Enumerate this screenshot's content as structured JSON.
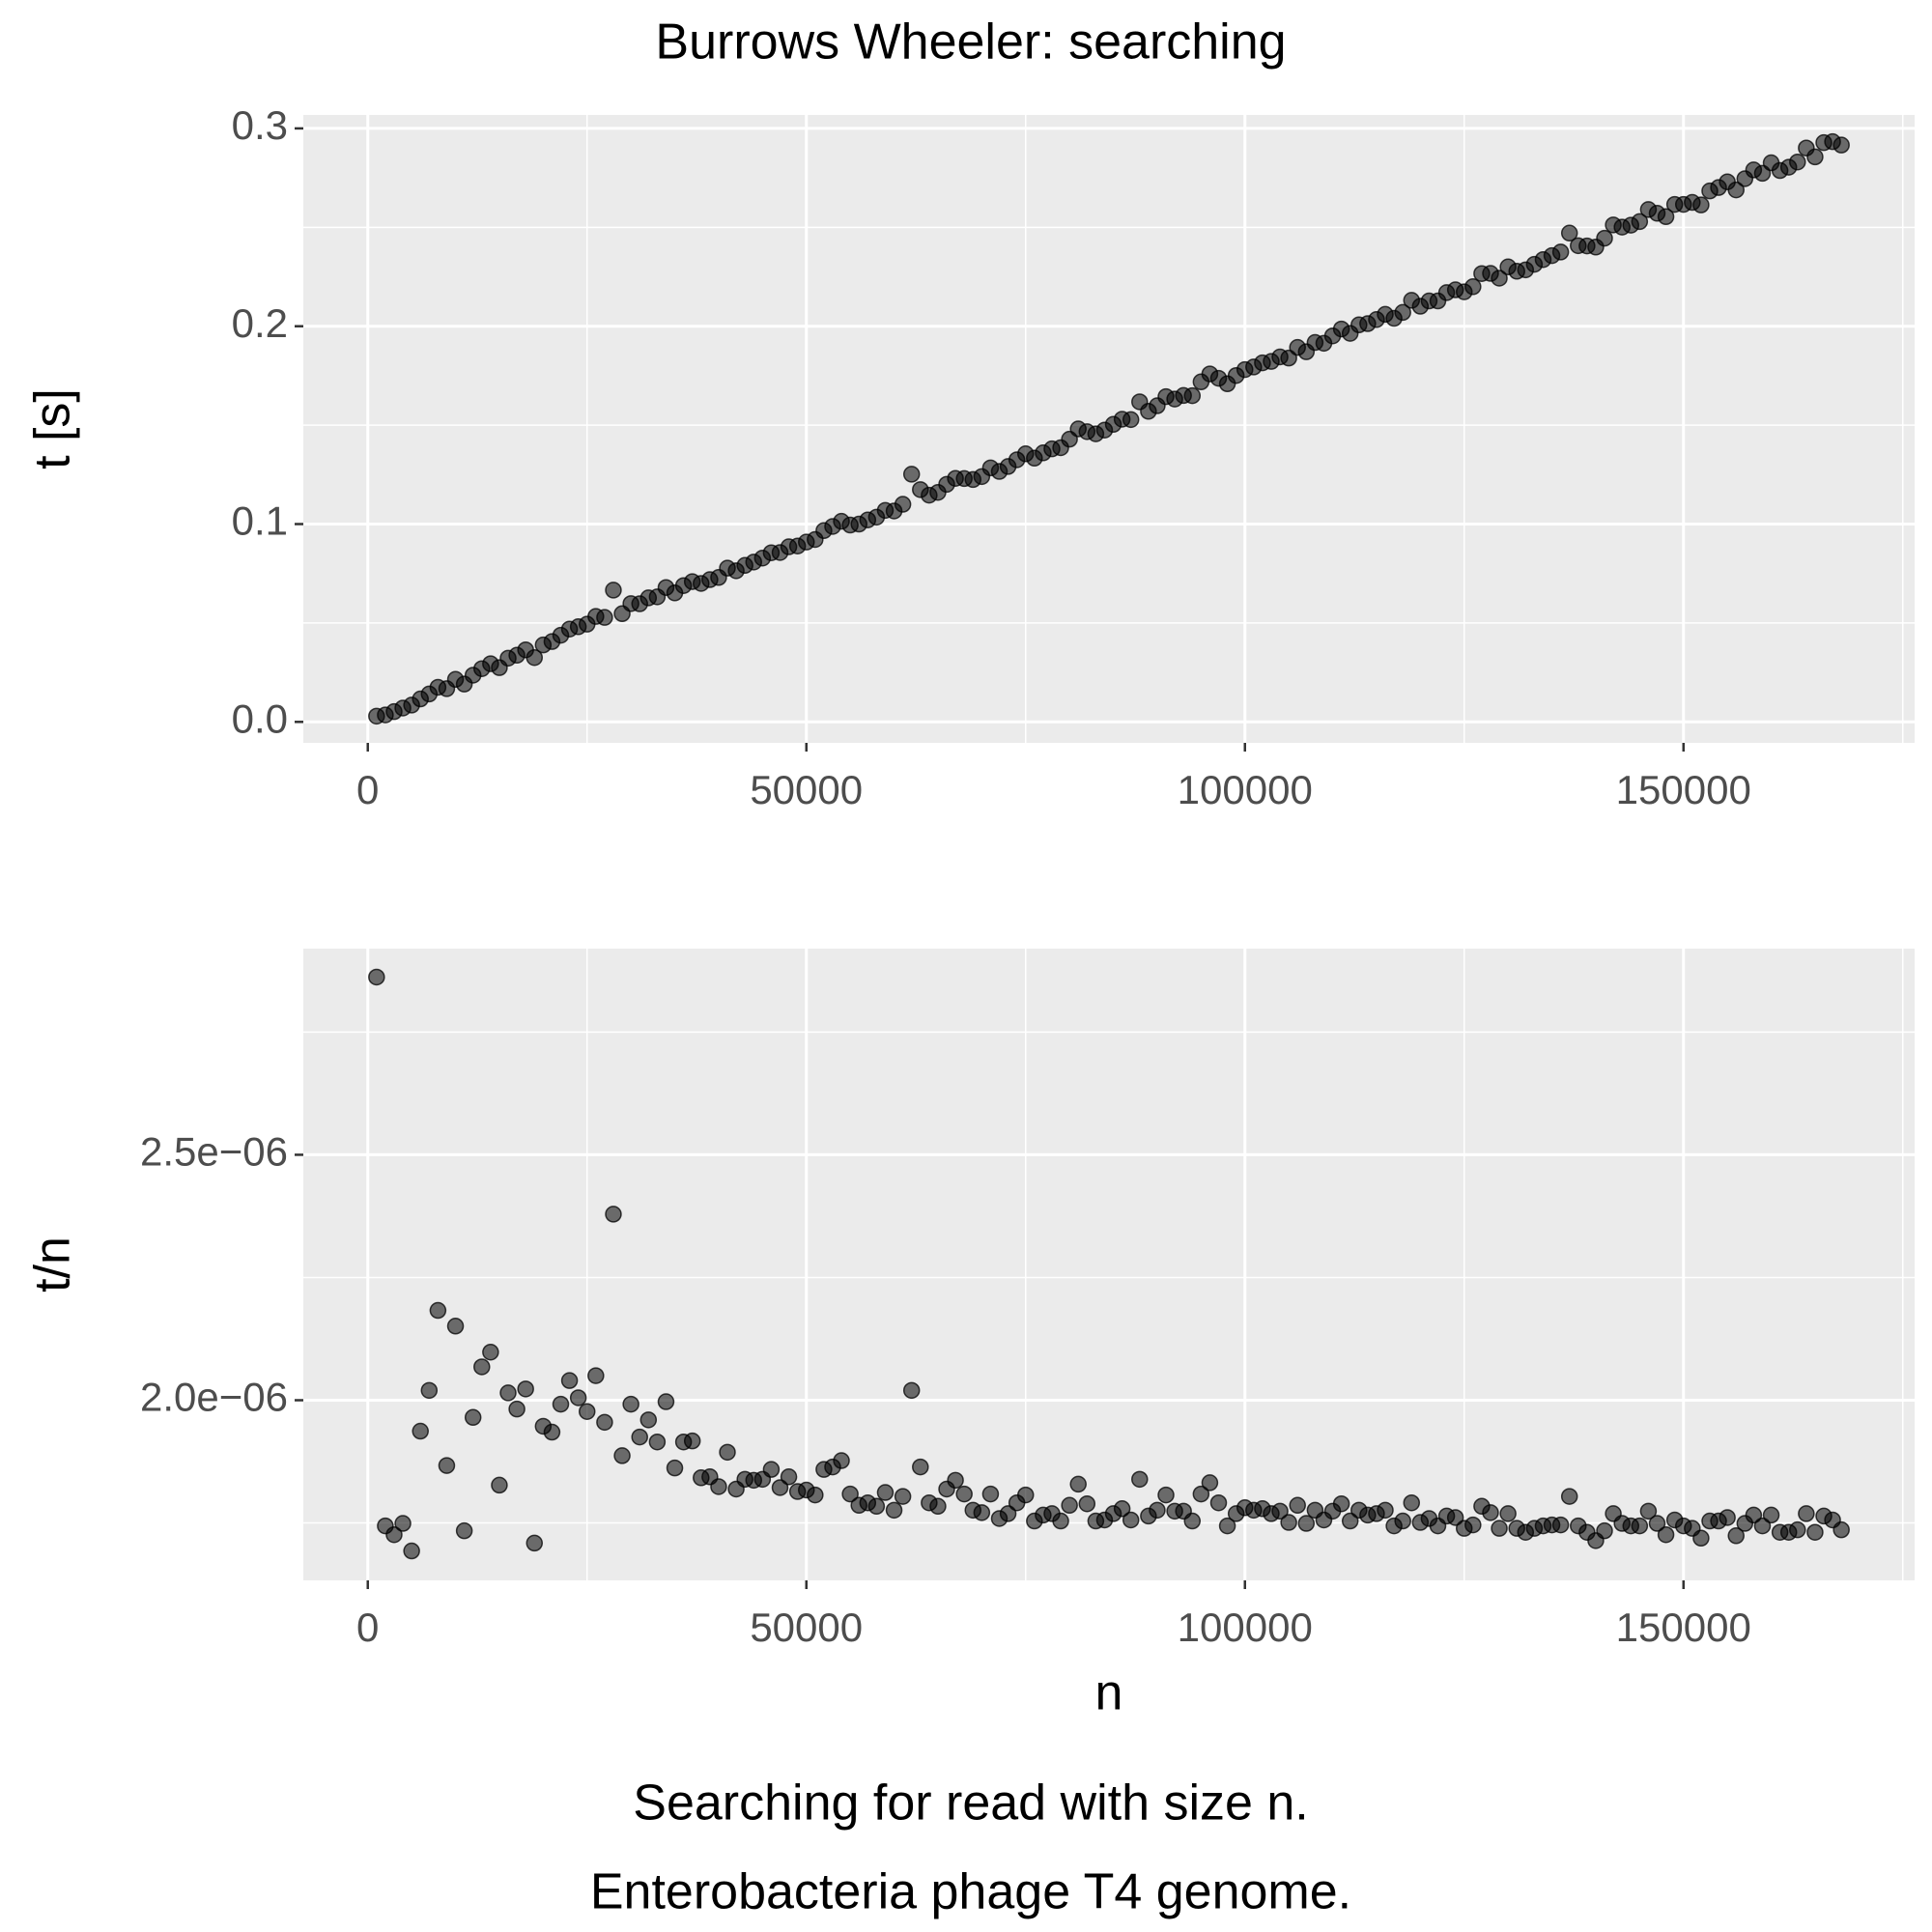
{
  "chart_data": [
    {
      "type": "scatter",
      "title": "Burrows Wheeler: searching",
      "ylabel": "t [s]",
      "color": "#000000",
      "grid": true,
      "xlim": [
        -7350,
        176350
      ],
      "xticks": [
        0,
        50000,
        100000,
        150000
      ],
      "ylim": [
        -0.0106,
        0.3068
      ],
      "yticks": [
        {
          "value": 0,
          "label": "0.0"
        },
        0.1,
        0.2,
        0.3
      ],
      "x": [
        1000,
        2000,
        3000,
        4000,
        5000,
        6000,
        7000,
        8000,
        9000,
        10000,
        11000,
        12000,
        13000,
        14000,
        15000,
        16000,
        17000,
        18000,
        19000,
        20000,
        21000,
        22000,
        23000,
        24000,
        25000,
        26000,
        27000,
        28000,
        29000,
        30000,
        31000,
        32000,
        33000,
        34000,
        35000,
        36000,
        37000,
        38000,
        39000,
        40000,
        41000,
        42000,
        43000,
        44000,
        45000,
        46000,
        47000,
        48000,
        49000,
        50000,
        51000,
        52000,
        53000,
        54000,
        55000,
        56000,
        57000,
        58000,
        59000,
        60000,
        61000,
        62000,
        63000,
        64000,
        65000,
        66000,
        67000,
        68000,
        69000,
        70000,
        71000,
        72000,
        73000,
        74000,
        75000,
        76000,
        77000,
        78000,
        79000,
        80000,
        81000,
        82000,
        83000,
        84000,
        85000,
        86000,
        87000,
        88000,
        89000,
        90000,
        91000,
        92000,
        93000,
        94000,
        95000,
        96000,
        97000,
        98000,
        99000,
        100000,
        101000,
        102000,
        103000,
        104000,
        105000,
        106000,
        107000,
        108000,
        109000,
        110000,
        111000,
        112000,
        113000,
        114000,
        115000,
        116000,
        117000,
        118000,
        119000,
        120000,
        121000,
        122000,
        123000,
        124000,
        125000,
        126000,
        127000,
        128000,
        129000,
        130000,
        131000,
        132000,
        133000,
        134000,
        135000,
        136000,
        137000,
        138000,
        139000,
        140000,
        141000,
        142000,
        143000,
        144000,
        145000,
        146000,
        147000,
        148000,
        149000,
        150000,
        151000,
        152000,
        153000,
        154000,
        155000,
        156000,
        157000,
        158000,
        159000,
        160000,
        161000,
        162000,
        163000,
        164000,
        165000,
        166000,
        167000,
        168000
      ],
      "values": [
        0.0029,
        0.0035,
        0.0052,
        0.007,
        0.0085,
        0.0116,
        0.0141,
        0.0175,
        0.0168,
        0.0215,
        0.0191,
        0.0236,
        0.0269,
        0.0294,
        0.0274,
        0.0322,
        0.0337,
        0.0364,
        0.0325,
        0.0389,
        0.0406,
        0.0438,
        0.0469,
        0.0481,
        0.0494,
        0.0533,
        0.0528,
        0.0666,
        0.0547,
        0.0598,
        0.0597,
        0.0627,
        0.0632,
        0.0679,
        0.0652,
        0.0689,
        0.0709,
        0.07,
        0.0719,
        0.073,
        0.0777,
        0.0764,
        0.0791,
        0.0808,
        0.0828,
        0.0855,
        0.0856,
        0.0885,
        0.0889,
        0.0909,
        0.0922,
        0.0967,
        0.0988,
        0.1014,
        0.0995,
        0.1,
        0.1021,
        0.1035,
        0.1069,
        0.1066,
        0.11,
        0.1252,
        0.1174,
        0.1146,
        0.116,
        0.1201,
        0.1231,
        0.123,
        0.1225,
        0.124,
        0.1284,
        0.1266,
        0.1291,
        0.1325,
        0.1355,
        0.1333,
        0.136,
        0.138,
        0.1386,
        0.1429,
        0.1481,
        0.1467,
        0.1456,
        0.1475,
        0.1504,
        0.153,
        0.1528,
        0.1618,
        0.157,
        0.1598,
        0.1644,
        0.1632,
        0.165,
        0.1649,
        0.1719,
        0.1759,
        0.1737,
        0.1709,
        0.1751,
        0.1781,
        0.1794,
        0.1815,
        0.1822,
        0.1845,
        0.1839,
        0.1893,
        0.1871,
        0.1918,
        0.1914,
        0.1951,
        0.1986,
        0.1964,
        0.2007,
        0.2013,
        0.2034,
        0.206,
        0.204,
        0.207,
        0.2131,
        0.2101,
        0.2128,
        0.2128,
        0.217,
        0.2184,
        0.2174,
        0.22,
        0.2266,
        0.2267,
        0.2243,
        0.23,
        0.2278,
        0.2285,
        0.2313,
        0.2337,
        0.2357,
        0.2375,
        0.2471,
        0.2407,
        0.2406,
        0.24,
        0.2445,
        0.2512,
        0.2501,
        0.2511,
        0.2529,
        0.259,
        0.2571,
        0.2554,
        0.2616,
        0.2616,
        0.2626,
        0.2613,
        0.2684,
        0.2701,
        0.273,
        0.2689,
        0.2746,
        0.279,
        0.2773,
        0.2826,
        0.2787,
        0.2804,
        0.283,
        0.2901,
        0.2856,
        0.2928,
        0.2933,
        0.2916
      ]
    },
    {
      "type": "scatter",
      "xlabel": "n",
      "ylabel": "t/n",
      "color": "#000000",
      "grid": true,
      "caption": [
        "Searching for read with size n.",
        "Enterobacteria phage T4 genome."
      ],
      "xlim": [
        -7350,
        176350
      ],
      "xticks": [
        0,
        50000,
        100000,
        150000
      ],
      "ylim": [
        1.633e-06,
        2.92e-06
      ],
      "yticks": [
        {
          "value": 2e-06,
          "label": "2.0e−06"
        },
        {
          "value": 2.5e-06,
          "label": "2.5e−06"
        }
      ],
      "x": [
        1000,
        2000,
        3000,
        4000,
        5000,
        6000,
        7000,
        8000,
        9000,
        10000,
        11000,
        12000,
        13000,
        14000,
        15000,
        16000,
        17000,
        18000,
        19000,
        20000,
        21000,
        22000,
        23000,
        24000,
        25000,
        26000,
        27000,
        28000,
        29000,
        30000,
        31000,
        32000,
        33000,
        34000,
        35000,
        36000,
        37000,
        38000,
        39000,
        40000,
        41000,
        42000,
        43000,
        44000,
        45000,
        46000,
        47000,
        48000,
        49000,
        50000,
        51000,
        52000,
        53000,
        54000,
        55000,
        56000,
        57000,
        58000,
        59000,
        60000,
        61000,
        62000,
        63000,
        64000,
        65000,
        66000,
        67000,
        68000,
        69000,
        70000,
        71000,
        72000,
        73000,
        74000,
        75000,
        76000,
        77000,
        78000,
        79000,
        80000,
        81000,
        82000,
        83000,
        84000,
        85000,
        86000,
        87000,
        88000,
        89000,
        90000,
        91000,
        92000,
        93000,
        94000,
        95000,
        96000,
        97000,
        98000,
        99000,
        100000,
        101000,
        102000,
        103000,
        104000,
        105000,
        106000,
        107000,
        108000,
        109000,
        110000,
        111000,
        112000,
        113000,
        114000,
        115000,
        116000,
        117000,
        118000,
        119000,
        120000,
        121000,
        122000,
        123000,
        124000,
        125000,
        126000,
        127000,
        128000,
        129000,
        130000,
        131000,
        132000,
        133000,
        134000,
        135000,
        136000,
        137000,
        138000,
        139000,
        140000,
        141000,
        142000,
        143000,
        144000,
        145000,
        146000,
        147000,
        148000,
        149000,
        150000,
        151000,
        152000,
        153000,
        154000,
        155000,
        156000,
        157000,
        158000,
        159000,
        160000,
        161000,
        162000,
        163000,
        164000,
        165000,
        166000,
        167000,
        168000
      ],
      "values": [
        2.862e-06,
        1.744e-06,
        1.726e-06,
        1.749e-06,
        1.693e-06,
        1.937e-06,
        2.02e-06,
        2.183e-06,
        1.867e-06,
        2.151e-06,
        1.734e-06,
        1.965e-06,
        2.068e-06,
        2.098e-06,
        1.827e-06,
        2.015e-06,
        1.982e-06,
        2.023e-06,
        1.709e-06,
        1.947e-06,
        1.935e-06,
        1.992e-06,
        2.04e-06,
        2.005e-06,
        1.977e-06,
        2.05e-06,
        1.955e-06,
        2.379e-06,
        1.887e-06,
        1.992e-06,
        1.925e-06,
        1.96e-06,
        1.915e-06,
        1.997e-06,
        1.862e-06,
        1.915e-06,
        1.917e-06,
        1.842e-06,
        1.844e-06,
        1.824e-06,
        1.894e-06,
        1.819e-06,
        1.839e-06,
        1.837e-06,
        1.839e-06,
        1.859e-06,
        1.822e-06,
        1.844e-06,
        1.814e-06,
        1.817e-06,
        1.807e-06,
        1.859e-06,
        1.864e-06,
        1.877e-06,
        1.809e-06,
        1.786e-06,
        1.791e-06,
        1.784e-06,
        1.812e-06,
        1.776e-06,
        1.804e-06,
        2.02e-06,
        1.864e-06,
        1.791e-06,
        1.784e-06,
        1.819e-06,
        1.837e-06,
        1.809e-06,
        1.776e-06,
        1.771e-06,
        1.809e-06,
        1.759e-06,
        1.769e-06,
        1.791e-06,
        1.807e-06,
        1.754e-06,
        1.766e-06,
        1.769e-06,
        1.754e-06,
        1.786e-06,
        1.829e-06,
        1.789e-06,
        1.754e-06,
        1.756e-06,
        1.769e-06,
        1.779e-06,
        1.756e-06,
        1.839e-06,
        1.764e-06,
        1.776e-06,
        1.807e-06,
        1.774e-06,
        1.774e-06,
        1.754e-06,
        1.809e-06,
        1.832e-06,
        1.791e-06,
        1.744e-06,
        1.769e-06,
        1.781e-06,
        1.776e-06,
        1.779e-06,
        1.769e-06,
        1.774e-06,
        1.751e-06,
        1.786e-06,
        1.749e-06,
        1.776e-06,
        1.756e-06,
        1.774e-06,
        1.789e-06,
        1.754e-06,
        1.776e-06,
        1.766e-06,
        1.769e-06,
        1.776e-06,
        1.744e-06,
        1.754e-06,
        1.791e-06,
        1.751e-06,
        1.759e-06,
        1.744e-06,
        1.764e-06,
        1.761e-06,
        1.739e-06,
        1.746e-06,
        1.784e-06,
        1.771e-06,
        1.739e-06,
        1.769e-06,
        1.739e-06,
        1.731e-06,
        1.739e-06,
        1.744e-06,
        1.746e-06,
        1.746e-06,
        1.804e-06,
        1.744e-06,
        1.731e-06,
        1.714e-06,
        1.734e-06,
        1.769e-06,
        1.749e-06,
        1.744e-06,
        1.744e-06,
        1.774e-06,
        1.749e-06,
        1.726e-06,
        1.756e-06,
        1.744e-06,
        1.739e-06,
        1.719e-06,
        1.754e-06,
        1.754e-06,
        1.761e-06,
        1.724e-06,
        1.749e-06,
        1.766e-06,
        1.744e-06,
        1.766e-06,
        1.731e-06,
        1.731e-06,
        1.736e-06,
        1.769e-06,
        1.731e-06,
        1.764e-06,
        1.756e-06,
        1.736e-06
      ]
    }
  ]
}
